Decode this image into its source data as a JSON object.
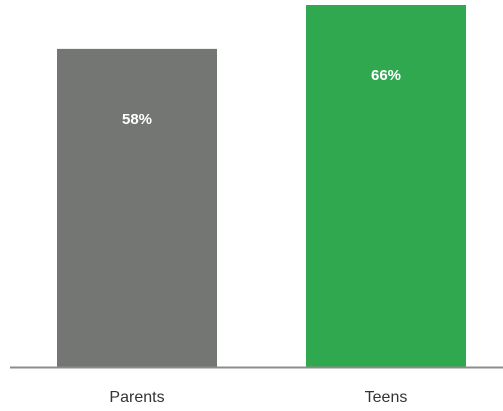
{
  "chart_data": {
    "type": "bar",
    "categories": [
      "Parents",
      "Teens"
    ],
    "values": [
      58,
      66
    ],
    "value_labels": [
      "58%",
      "66%"
    ],
    "colors": [
      "#747674",
      "#2fa84f"
    ],
    "ylim": [
      0,
      66
    ],
    "grid": false,
    "legend": "none"
  },
  "colors": {
    "axis": "#8c8c8c",
    "label_text": "#333333",
    "value_text": "#ffffff"
  }
}
